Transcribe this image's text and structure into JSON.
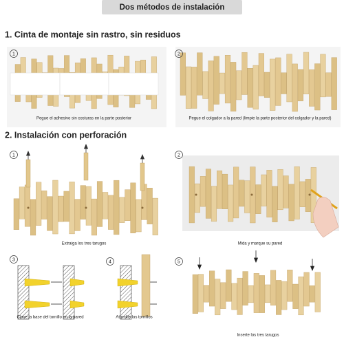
{
  "header": {
    "title": "Dos métodos de instalación"
  },
  "section1": {
    "title": "1. Cinta de montaje sin rastro, sin residuos",
    "steps": [
      {
        "number": "1",
        "caption": "Pegue el adhesivo sin costuras en la parte posterior"
      },
      {
        "number": "2",
        "caption": "Pegue el colgador a la pared (limpie la parte posterior del colgador y la pared)"
      }
    ]
  },
  "section2": {
    "title": "2. Instalación con perforación",
    "steps": [
      {
        "number": "1",
        "caption": "Extraiga los tres tarugos"
      },
      {
        "number": "2",
        "caption": "Mida y marque su pared"
      },
      {
        "number": "3",
        "caption": "Clave la base del tornillo en la pared"
      },
      {
        "number": "4",
        "caption": "Atornille los tornillos"
      },
      {
        "number": "5",
        "caption": "Inserte los tres tarugos"
      }
    ]
  }
}
